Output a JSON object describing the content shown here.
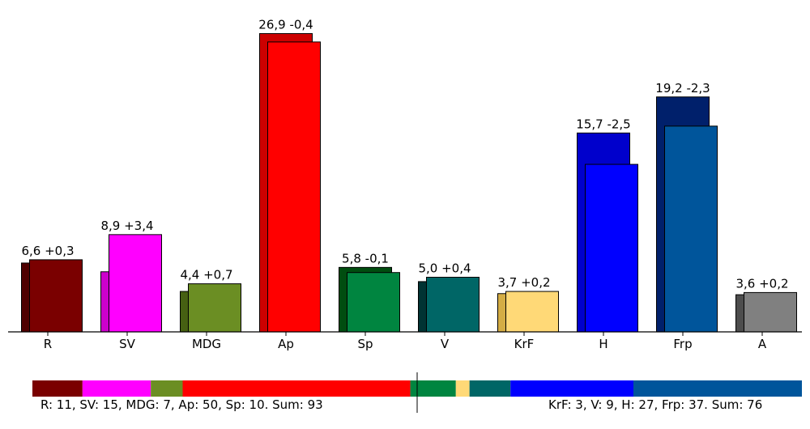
{
  "chart_data": {
    "type": "bar",
    "categories": [
      "R",
      "SV",
      "MDG",
      "Ap",
      "Sp",
      "V",
      "KrF",
      "H",
      "Frp",
      "A"
    ],
    "series": [
      {
        "values": [
          6.3,
          5.5,
          3.7,
          27.3,
          5.9,
          4.6,
          3.5,
          18.2,
          21.5,
          3.4
        ]
      },
      {
        "values": [
          6.6,
          8.9,
          4.4,
          26.9,
          5.8,
          5.0,
          3.7,
          15.7,
          19.2,
          3.6
        ]
      }
    ],
    "colors": {
      "current": [
        "#7a0000",
        "#ff00ff",
        "#6b8e23",
        "#ff0000",
        "#008540",
        "#006666",
        "#ffd977",
        "#0000ff",
        "#00559b",
        "#808080"
      ],
      "previous": [
        "#4f0000",
        "#cc00cc",
        "#466012",
        "#cc0000",
        "#004d10",
        "#003333",
        "#d4ad45",
        "#0000cc",
        "#00206b",
        "#4d4d4d"
      ]
    },
    "data_labels": [
      "6,6 +0,3",
      "8,9 +3,4",
      "4,4 +0,7",
      "26,9 -0,4",
      "5,8 -0,1",
      "5,0 +0,4",
      "3,7 +0,2",
      "15,7 -2,5",
      "19,2 -2,3",
      "3,6 +0,2"
    ],
    "ylim": [
      0,
      30
    ],
    "grid": false,
    "title": "",
    "xlabel": "",
    "ylabel": ""
  },
  "seats": {
    "left_blocks": [
      {
        "party": "R",
        "seats": 11,
        "color": "#7a0000"
      },
      {
        "party": "SV",
        "seats": 15,
        "color": "#ff00ff"
      },
      {
        "party": "MDG",
        "seats": 7,
        "color": "#6b8e23"
      },
      {
        "party": "Ap",
        "seats": 50,
        "color": "#ff0000"
      },
      {
        "party": "Sp",
        "seats": 10,
        "color": "#008540"
      }
    ],
    "right_blocks": [
      {
        "party": "KrF",
        "seats": 3,
        "color": "#ffd977"
      },
      {
        "party": "V",
        "seats": 9,
        "color": "#006666"
      },
      {
        "party": "H",
        "seats": 27,
        "color": "#0000ff"
      },
      {
        "party": "Frp",
        "seats": 37,
        "color": "#00559b"
      }
    ],
    "left_text": "R: 11, SV: 15, MDG: 7, Ap: 50, Sp: 10. Sum: 93",
    "right_text": "KrF: 3, V: 9, H: 27, Frp: 37. Sum: 76",
    "total_seats": 169
  }
}
